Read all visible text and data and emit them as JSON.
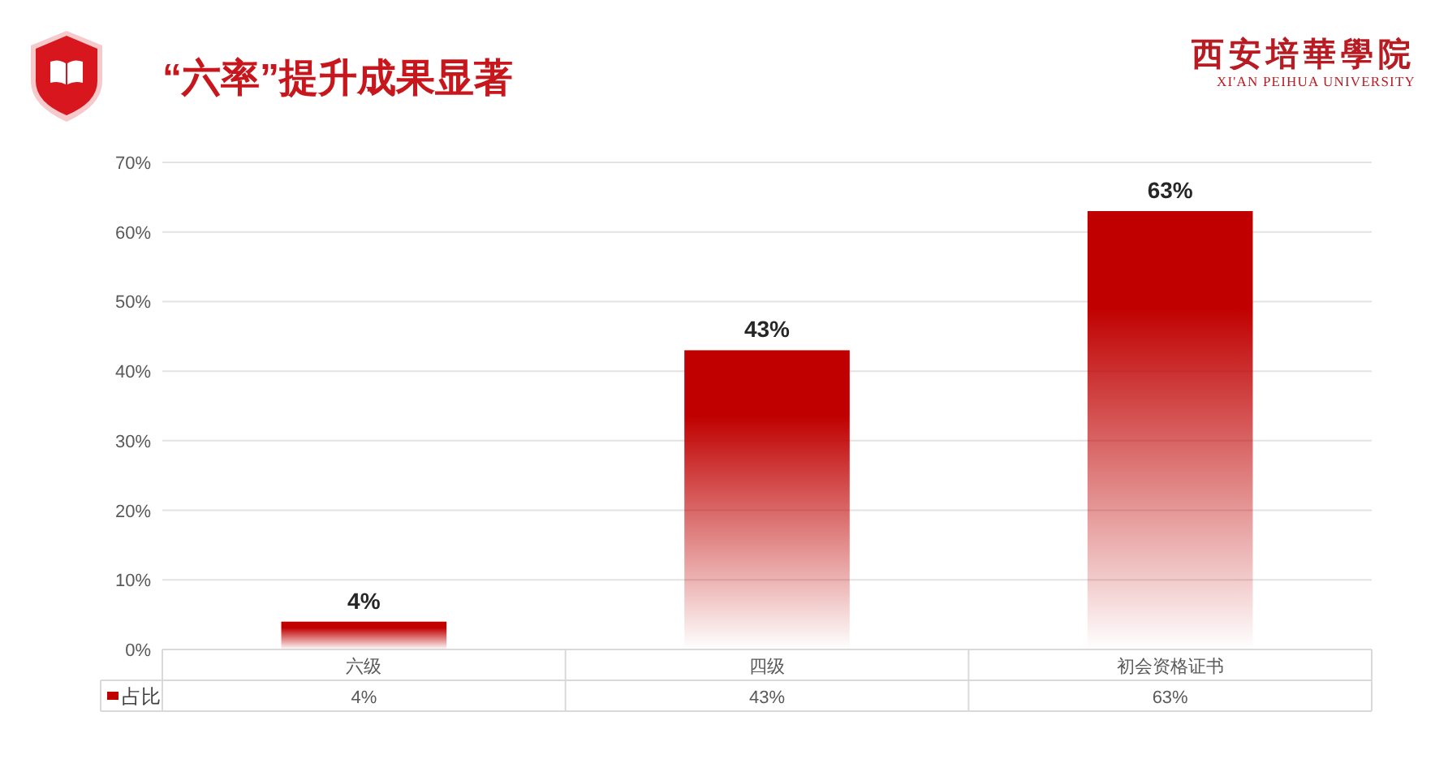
{
  "chart_data": {
    "type": "bar",
    "title": "“六率”提升成果显著",
    "categories": [
      "六级",
      "四级",
      "初会资格证书"
    ],
    "series": [
      {
        "name": "占比",
        "color": "#c00000",
        "values": [
          4,
          43,
          63
        ],
        "value_labels": [
          "4%",
          "43%",
          "63%"
        ]
      }
    ],
    "ylim": [
      0,
      70
    ],
    "yticks": [
      {
        "value": 0,
        "label": "0%"
      },
      {
        "value": 10,
        "label": "10%"
      },
      {
        "value": 20,
        "label": "20%"
      },
      {
        "value": 30,
        "label": "30%"
      },
      {
        "value": 40,
        "label": "40%"
      },
      {
        "value": 50,
        "label": "50%"
      },
      {
        "value": 60,
        "label": "60%"
      },
      {
        "value": 70,
        "label": "70%"
      }
    ],
    "grid": "y",
    "legend": "bottom left",
    "annotations": [
      "西安培華學院",
      "XI'AN PEIHUA UNIVERSITY"
    ]
  }
}
